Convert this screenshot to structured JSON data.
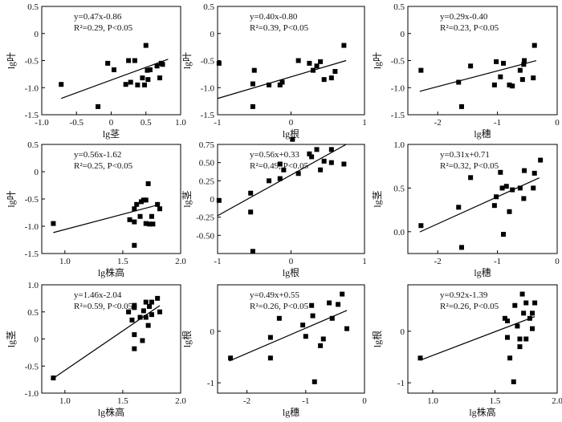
{
  "chart_data": [
    {
      "type": "scatter",
      "id": "p1",
      "xlabel": "lg茎",
      "ylabel": "lg叶",
      "xlim": [
        -1.0,
        1.0
      ],
      "ylim": [
        -1.5,
        0.5
      ],
      "xticks": [
        -1.0,
        -0.5,
        0.0,
        0.5,
        1.0
      ],
      "xtick_labels": [
        "-1.0",
        "-0.5",
        "0",
        "0.5",
        "1.0"
      ],
      "yticks": [
        -1.5,
        -1.0,
        -0.5,
        0.0,
        0.5
      ],
      "ytick_labels": [
        "-1.5",
        "-1.0",
        "-0.5",
        "0",
        "0.5"
      ],
      "equation": "y=0.47x-0.86",
      "stats": "R²=0.29, P<0.05",
      "fit": {
        "slope": 0.47,
        "intercept": -0.86,
        "x_range": [
          -0.72,
          0.82
        ]
      },
      "points": [
        [
          -0.72,
          -0.94
        ],
        [
          -0.19,
          -1.35
        ],
        [
          -0.05,
          -0.55
        ],
        [
          0.04,
          -0.67
        ],
        [
          0.21,
          -0.94
        ],
        [
          0.25,
          -0.5
        ],
        [
          0.28,
          -0.9
        ],
        [
          0.34,
          -0.5
        ],
        [
          0.38,
          -0.95
        ],
        [
          0.45,
          -0.82
        ],
        [
          0.48,
          -0.95
        ],
        [
          0.5,
          -0.22
        ],
        [
          0.53,
          -0.85
        ],
        [
          0.52,
          -0.68
        ],
        [
          0.56,
          -0.67
        ],
        [
          0.66,
          -0.6
        ],
        [
          0.7,
          -0.82
        ],
        [
          0.72,
          -0.55
        ],
        [
          0.74,
          -0.57
        ]
      ]
    },
    {
      "type": "scatter",
      "id": "p2",
      "xlabel": "lg根",
      "ylabel": "lg叶",
      "xlim": [
        -1.0,
        1.0
      ],
      "ylim": [
        -1.5,
        0.5
      ],
      "xticks": [
        -1,
        0,
        1
      ],
      "xtick_labels": [
        "-1",
        "0",
        "1"
      ],
      "yticks": [
        -1.5,
        -1.0,
        -0.5,
        0.0,
        0.5
      ],
      "ytick_labels": [
        "-1.5",
        "-1.0",
        "-0.5",
        "0",
        "0.5"
      ],
      "equation": "y=0.40x-0.80",
      "stats": "R²=0.39, P<0.05",
      "fit": {
        "slope": 0.4,
        "intercept": -0.8,
        "x_range": [
          -1.0,
          0.75
        ]
      },
      "points": [
        [
          -0.98,
          -0.55
        ],
        [
          -0.52,
          -1.35
        ],
        [
          -0.52,
          -0.93
        ],
        [
          -0.5,
          -0.68
        ],
        [
          -0.3,
          -0.95
        ],
        [
          -0.15,
          -0.95
        ],
        [
          -0.12,
          -0.9
        ],
        [
          0.1,
          -0.5
        ],
        [
          0.25,
          -0.55
        ],
        [
          0.3,
          -0.68
        ],
        [
          0.35,
          -0.6
        ],
        [
          0.4,
          -0.52
        ],
        [
          0.45,
          -0.85
        ],
        [
          0.55,
          -0.82
        ],
        [
          0.6,
          -0.7
        ],
        [
          0.72,
          -0.22
        ]
      ]
    },
    {
      "type": "scatter",
      "id": "p3",
      "xlabel": "lg穗",
      "ylabel": "lg叶",
      "xlim": [
        -2.5,
        0.0
      ],
      "ylim": [
        -1.5,
        0.5
      ],
      "xticks": [
        -2,
        -1,
        0
      ],
      "xtick_labels": [
        "-2",
        "-1",
        "0"
      ],
      "yticks": [
        -1.5,
        -1.0,
        -0.5,
        0.0,
        0.5
      ],
      "ytick_labels": [
        "-1.5",
        "-1.0",
        "-0.5",
        "0",
        "0.5"
      ],
      "equation": "y=0.29x-0.40",
      "stats": "R²=0.23, P<0.05",
      "fit": {
        "slope": 0.29,
        "intercept": -0.4,
        "x_range": [
          -2.3,
          -0.35
        ]
      },
      "points": [
        [
          -2.28,
          -0.68
        ],
        [
          -1.65,
          -0.9
        ],
        [
          -1.6,
          -1.35
        ],
        [
          -1.45,
          -0.6
        ],
        [
          -1.05,
          -0.95
        ],
        [
          -1.02,
          -0.52
        ],
        [
          -0.95,
          -0.8
        ],
        [
          -0.9,
          -0.55
        ],
        [
          -0.8,
          -0.95
        ],
        [
          -0.75,
          -0.97
        ],
        [
          -0.62,
          -0.68
        ],
        [
          -0.58,
          -0.85
        ],
        [
          -0.56,
          -0.57
        ],
        [
          -0.55,
          -0.5
        ],
        [
          -0.4,
          -0.82
        ],
        [
          -0.38,
          -0.22
        ]
      ]
    },
    {
      "type": "scatter",
      "id": "p4",
      "xlabel": "lg株高",
      "ylabel": "lg叶",
      "xlim": [
        0.8,
        2.0
      ],
      "ylim": [
        -1.5,
        0.5
      ],
      "xticks": [
        1.0,
        1.5,
        2.0
      ],
      "xtick_labels": [
        "1.0",
        "1.5",
        "2.0"
      ],
      "yticks": [
        -1.5,
        -1.0,
        -0.5,
        0.0,
        0.5
      ],
      "ytick_labels": [
        "-1.5",
        "-1.0",
        "-0.5",
        "0",
        "0.5"
      ],
      "equation": "y=0.56x-1.62",
      "stats": "R²=0.25, P<0.05",
      "fit": {
        "slope": 0.56,
        "intercept": -1.62,
        "x_range": [
          0.9,
          1.82
        ]
      },
      "points": [
        [
          0.9,
          -0.95
        ],
        [
          1.56,
          -0.88
        ],
        [
          1.6,
          -0.92
        ],
        [
          1.6,
          -1.35
        ],
        [
          1.6,
          -0.68
        ],
        [
          1.62,
          -0.6
        ],
        [
          1.65,
          -0.82
        ],
        [
          1.66,
          -0.55
        ],
        [
          1.68,
          -0.52
        ],
        [
          1.7,
          -0.52
        ],
        [
          1.7,
          -0.95
        ],
        [
          1.72,
          -0.22
        ],
        [
          1.73,
          -0.96
        ],
        [
          1.75,
          -0.82
        ],
        [
          1.76,
          -0.96
        ],
        [
          1.8,
          -0.6
        ],
        [
          1.82,
          -0.68
        ]
      ]
    },
    {
      "type": "scatter",
      "id": "p5",
      "xlabel": "lg根",
      "ylabel": "lg茎",
      "xlim": [
        -1.0,
        1.0
      ],
      "ylim": [
        -0.75,
        0.75
      ],
      "xticks": [
        -1,
        0,
        1
      ],
      "xtick_labels": [
        "-1",
        "0",
        "1"
      ],
      "yticks": [
        -0.5,
        -0.25,
        0.0,
        0.25,
        0.5,
        0.75
      ],
      "ytick_labels": [
        "-0.50",
        "-0.25",
        "0",
        "0.25",
        "0.50",
        "0.75"
      ],
      "equation": "y=0.56x+0.33",
      "stats": "R²=0.49, P<0.05",
      "fit": {
        "slope": 0.56,
        "intercept": 0.33,
        "x_range": [
          -1.0,
          0.75
        ]
      },
      "points": [
        [
          -0.98,
          -0.02
        ],
        [
          -0.55,
          0.08
        ],
        [
          -0.55,
          -0.18
        ],
        [
          -0.52,
          -0.72
        ],
        [
          -0.3,
          0.25
        ],
        [
          -0.15,
          0.28
        ],
        [
          -0.15,
          0.48
        ],
        [
          -0.1,
          0.4
        ],
        [
          0.02,
          0.82
        ],
        [
          0.1,
          0.35
        ],
        [
          0.25,
          0.62
        ],
        [
          0.28,
          0.58
        ],
        [
          0.35,
          0.68
        ],
        [
          0.4,
          0.4
        ],
        [
          0.45,
          0.52
        ],
        [
          0.55,
          0.68
        ],
        [
          0.55,
          0.5
        ],
        [
          0.72,
          0.48
        ]
      ]
    },
    {
      "type": "scatter",
      "id": "p6",
      "xlabel": "lg穗",
      "ylabel": "lg茎",
      "xlim": [
        -2.5,
        0.0
      ],
      "ylim": [
        -0.25,
        1.0
      ],
      "xticks": [
        -2,
        -1,
        0
      ],
      "xtick_labels": [
        "-2",
        "-1",
        "0"
      ],
      "yticks": [
        0.0,
        0.5,
        1.0
      ],
      "ytick_labels": [
        "0.0",
        "0.5",
        "1.0"
      ],
      "equation": "y=0.31x+0.71",
      "stats": "R²=0.32, P<0.05",
      "fit": {
        "slope": 0.31,
        "intercept": 0.71,
        "x_range": [
          -2.3,
          -0.3
        ]
      },
      "points": [
        [
          -2.28,
          0.07
        ],
        [
          -1.65,
          0.28
        ],
        [
          -1.6,
          -0.18
        ],
        [
          -1.45,
          0.62
        ],
        [
          -1.05,
          0.3
        ],
        [
          -1.02,
          0.4
        ],
        [
          -0.95,
          0.68
        ],
        [
          -0.92,
          0.5
        ],
        [
          -0.9,
          -0.03
        ],
        [
          -0.85,
          0.52
        ],
        [
          -0.8,
          0.23
        ],
        [
          -0.75,
          0.48
        ],
        [
          -0.62,
          0.5
        ],
        [
          -0.56,
          0.38
        ],
        [
          -0.55,
          0.7
        ],
        [
          -0.4,
          0.5
        ],
        [
          -0.38,
          0.67
        ],
        [
          -0.28,
          0.82
        ]
      ]
    },
    {
      "type": "scatter",
      "id": "p7",
      "xlabel": "lg株高",
      "ylabel": "lg茎",
      "xlim": [
        0.8,
        2.0
      ],
      "ylim": [
        -1.0,
        1.0
      ],
      "xticks": [
        1.0,
        1.5,
        2.0
      ],
      "xtick_labels": [
        "1.0",
        "1.5",
        "2.0"
      ],
      "yticks": [
        -1.0,
        -0.5,
        0.0,
        0.5,
        1.0
      ],
      "ytick_labels": [
        "-1.0",
        "-0.5",
        "0",
        "0.5",
        "1.0"
      ],
      "equation": "y=1.46x-2.04",
      "stats": "R²=0.59, P<0.05",
      "fit": {
        "slope": 1.46,
        "intercept": -2.04,
        "x_range": [
          0.9,
          1.82
        ]
      },
      "points": [
        [
          0.9,
          -0.72
        ],
        [
          1.55,
          0.5
        ],
        [
          1.58,
          0.35
        ],
        [
          1.6,
          0.58
        ],
        [
          1.6,
          0.62
        ],
        [
          1.6,
          0.08
        ],
        [
          1.6,
          -0.18
        ],
        [
          1.65,
          0.4
        ],
        [
          1.67,
          -0.03
        ],
        [
          1.68,
          0.52
        ],
        [
          1.7,
          0.4
        ],
        [
          1.7,
          0.68
        ],
        [
          1.72,
          0.25
        ],
        [
          1.73,
          0.6
        ],
        [
          1.75,
          0.68
        ],
        [
          1.75,
          0.45
        ],
        [
          1.8,
          0.75
        ],
        [
          1.82,
          0.5
        ]
      ]
    },
    {
      "type": "scatter",
      "id": "p8",
      "xlabel": "lg穗",
      "ylabel": "lg根",
      "xlim": [
        -2.5,
        0.0
      ],
      "ylim": [
        -1.2,
        0.9
      ],
      "xticks": [
        -2,
        -1,
        0
      ],
      "xtick_labels": [
        "-2",
        "-1",
        "0"
      ],
      "yticks": [
        -1,
        0
      ],
      "ytick_labels": [
        "-1",
        "0"
      ],
      "equation": "y=0.49x+0.55",
      "stats": "R²=0.26, P<0.05",
      "fit": {
        "slope": 0.49,
        "intercept": 0.55,
        "x_range": [
          -2.3,
          -0.3
        ]
      },
      "points": [
        [
          -2.28,
          -0.52
        ],
        [
          -1.6,
          -0.52
        ],
        [
          -1.6,
          -0.12
        ],
        [
          -1.45,
          0.25
        ],
        [
          -1.05,
          0.12
        ],
        [
          -1.0,
          -0.1
        ],
        [
          -0.9,
          0.5
        ],
        [
          -0.88,
          0.3
        ],
        [
          -0.85,
          -0.98
        ],
        [
          -0.75,
          -0.28
        ],
        [
          -0.7,
          -0.15
        ],
        [
          -0.6,
          0.55
        ],
        [
          -0.55,
          0.25
        ],
        [
          -0.45,
          0.52
        ],
        [
          -0.38,
          0.72
        ],
        [
          -0.3,
          0.05
        ]
      ]
    },
    {
      "type": "scatter",
      "id": "p9",
      "xlabel": "lg株高",
      "ylabel": "lg根",
      "xlim": [
        0.8,
        2.0
      ],
      "ylim": [
        -1.2,
        0.9
      ],
      "xticks": [
        1.0,
        1.5,
        2.0
      ],
      "xtick_labels": [
        "1.0",
        "1.5",
        "2.0"
      ],
      "yticks": [
        -1,
        0
      ],
      "ytick_labels": [
        "-1",
        "0"
      ],
      "equation": "y=0.92x-1.39",
      "stats": "R²=0.26, P<0.05",
      "fit": {
        "slope": 0.92,
        "intercept": -1.39,
        "x_range": [
          0.9,
          1.82
        ]
      },
      "points": [
        [
          0.9,
          -0.52
        ],
        [
          1.58,
          0.25
        ],
        [
          1.6,
          0.2
        ],
        [
          1.6,
          -0.12
        ],
        [
          1.62,
          -0.52
        ],
        [
          1.65,
          -0.98
        ],
        [
          1.66,
          0.5
        ],
        [
          1.68,
          0.1
        ],
        [
          1.7,
          -0.15
        ],
        [
          1.7,
          -0.3
        ],
        [
          1.72,
          0.72
        ],
        [
          1.73,
          0.35
        ],
        [
          1.75,
          0.55
        ],
        [
          1.75,
          -0.15
        ],
        [
          1.78,
          0.25
        ],
        [
          1.8,
          0.35
        ],
        [
          1.82,
          0.55
        ],
        [
          1.8,
          0.05
        ]
      ]
    }
  ]
}
